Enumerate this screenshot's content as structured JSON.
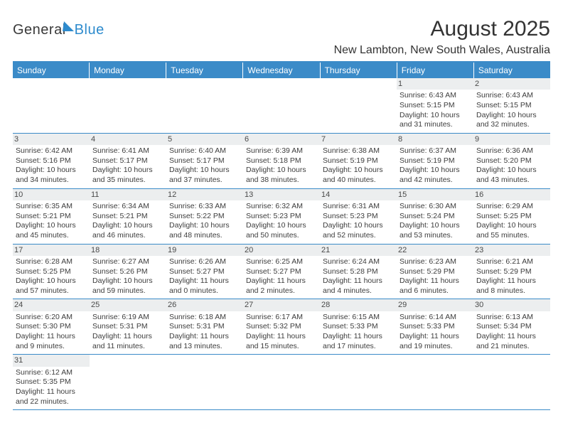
{
  "logo": {
    "left": "General",
    "right": "Blue"
  },
  "title": "August 2025",
  "location": "New Lambton, New South Wales, Australia",
  "colors": {
    "header_bg": "#3b8bc8",
    "header_text": "#ffffff",
    "daynum_bg": "#eceeef",
    "border": "#3b8bc8",
    "text": "#333333",
    "logo_blue": "#2e8bcd"
  },
  "columns": [
    "Sunday",
    "Monday",
    "Tuesday",
    "Wednesday",
    "Thursday",
    "Friday",
    "Saturday"
  ],
  "labels": {
    "sunrise": "Sunrise:",
    "sunset": "Sunset:",
    "daylight": "Daylight:"
  },
  "weeks": [
    [
      null,
      null,
      null,
      null,
      null,
      {
        "d": "1",
        "sr": "6:43 AM",
        "ss": "5:15 PM",
        "dl": "10 hours and 31 minutes."
      },
      {
        "d": "2",
        "sr": "6:43 AM",
        "ss": "5:15 PM",
        "dl": "10 hours and 32 minutes."
      }
    ],
    [
      {
        "d": "3",
        "sr": "6:42 AM",
        "ss": "5:16 PM",
        "dl": "10 hours and 34 minutes."
      },
      {
        "d": "4",
        "sr": "6:41 AM",
        "ss": "5:17 PM",
        "dl": "10 hours and 35 minutes."
      },
      {
        "d": "5",
        "sr": "6:40 AM",
        "ss": "5:17 PM",
        "dl": "10 hours and 37 minutes."
      },
      {
        "d": "6",
        "sr": "6:39 AM",
        "ss": "5:18 PM",
        "dl": "10 hours and 38 minutes."
      },
      {
        "d": "7",
        "sr": "6:38 AM",
        "ss": "5:19 PM",
        "dl": "10 hours and 40 minutes."
      },
      {
        "d": "8",
        "sr": "6:37 AM",
        "ss": "5:19 PM",
        "dl": "10 hours and 42 minutes."
      },
      {
        "d": "9",
        "sr": "6:36 AM",
        "ss": "5:20 PM",
        "dl": "10 hours and 43 minutes."
      }
    ],
    [
      {
        "d": "10",
        "sr": "6:35 AM",
        "ss": "5:21 PM",
        "dl": "10 hours and 45 minutes."
      },
      {
        "d": "11",
        "sr": "6:34 AM",
        "ss": "5:21 PM",
        "dl": "10 hours and 46 minutes."
      },
      {
        "d": "12",
        "sr": "6:33 AM",
        "ss": "5:22 PM",
        "dl": "10 hours and 48 minutes."
      },
      {
        "d": "13",
        "sr": "6:32 AM",
        "ss": "5:23 PM",
        "dl": "10 hours and 50 minutes."
      },
      {
        "d": "14",
        "sr": "6:31 AM",
        "ss": "5:23 PM",
        "dl": "10 hours and 52 minutes."
      },
      {
        "d": "15",
        "sr": "6:30 AM",
        "ss": "5:24 PM",
        "dl": "10 hours and 53 minutes."
      },
      {
        "d": "16",
        "sr": "6:29 AM",
        "ss": "5:25 PM",
        "dl": "10 hours and 55 minutes."
      }
    ],
    [
      {
        "d": "17",
        "sr": "6:28 AM",
        "ss": "5:25 PM",
        "dl": "10 hours and 57 minutes."
      },
      {
        "d": "18",
        "sr": "6:27 AM",
        "ss": "5:26 PM",
        "dl": "10 hours and 59 minutes."
      },
      {
        "d": "19",
        "sr": "6:26 AM",
        "ss": "5:27 PM",
        "dl": "11 hours and 0 minutes."
      },
      {
        "d": "20",
        "sr": "6:25 AM",
        "ss": "5:27 PM",
        "dl": "11 hours and 2 minutes."
      },
      {
        "d": "21",
        "sr": "6:24 AM",
        "ss": "5:28 PM",
        "dl": "11 hours and 4 minutes."
      },
      {
        "d": "22",
        "sr": "6:23 AM",
        "ss": "5:29 PM",
        "dl": "11 hours and 6 minutes."
      },
      {
        "d": "23",
        "sr": "6:21 AM",
        "ss": "5:29 PM",
        "dl": "11 hours and 8 minutes."
      }
    ],
    [
      {
        "d": "24",
        "sr": "6:20 AM",
        "ss": "5:30 PM",
        "dl": "11 hours and 9 minutes."
      },
      {
        "d": "25",
        "sr": "6:19 AM",
        "ss": "5:31 PM",
        "dl": "11 hours and 11 minutes."
      },
      {
        "d": "26",
        "sr": "6:18 AM",
        "ss": "5:31 PM",
        "dl": "11 hours and 13 minutes."
      },
      {
        "d": "27",
        "sr": "6:17 AM",
        "ss": "5:32 PM",
        "dl": "11 hours and 15 minutes."
      },
      {
        "d": "28",
        "sr": "6:15 AM",
        "ss": "5:33 PM",
        "dl": "11 hours and 17 minutes."
      },
      {
        "d": "29",
        "sr": "6:14 AM",
        "ss": "5:33 PM",
        "dl": "11 hours and 19 minutes."
      },
      {
        "d": "30",
        "sr": "6:13 AM",
        "ss": "5:34 PM",
        "dl": "11 hours and 21 minutes."
      }
    ],
    [
      {
        "d": "31",
        "sr": "6:12 AM",
        "ss": "5:35 PM",
        "dl": "11 hours and 22 minutes."
      },
      null,
      null,
      null,
      null,
      null,
      null
    ]
  ]
}
